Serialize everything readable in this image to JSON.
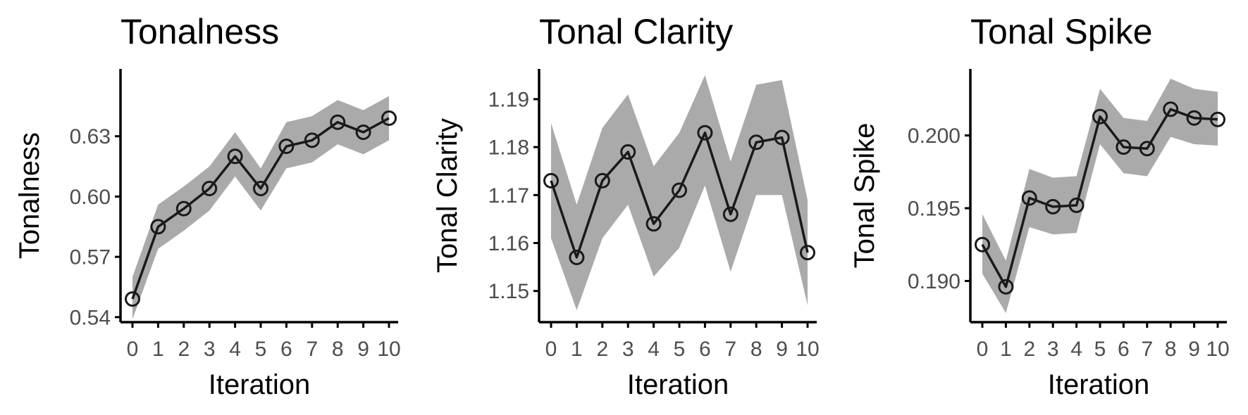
{
  "chart_data": [
    {
      "type": "line",
      "title": "Tonalness",
      "xlabel": "Iteration",
      "ylabel": "Tonalness",
      "x": [
        0,
        1,
        2,
        3,
        4,
        5,
        6,
        7,
        8,
        9,
        10
      ],
      "xticks": [
        "0",
        "1",
        "2",
        "3",
        "4",
        "5",
        "6",
        "7",
        "8",
        "9",
        "10"
      ],
      "yticks": [
        "0.54",
        "0.57",
        "0.60",
        "0.63"
      ],
      "ytick_values": [
        0.54,
        0.57,
        0.6,
        0.63
      ],
      "ylim": [
        0.5375,
        0.6635
      ],
      "series": [
        {
          "values": [
            0.549,
            0.585,
            0.594,
            0.604,
            0.62,
            0.604,
            0.625,
            0.628,
            0.637,
            0.632,
            0.639
          ],
          "lower": [
            0.539,
            0.574,
            0.583,
            0.593,
            0.61,
            0.593,
            0.614,
            0.617,
            0.626,
            0.621,
            0.628
          ],
          "upper": [
            0.56,
            0.596,
            0.605,
            0.615,
            0.632,
            0.614,
            0.637,
            0.64,
            0.648,
            0.643,
            0.65
          ]
        }
      ],
      "grid": false,
      "legend": "none"
    },
    {
      "type": "line",
      "title": "Tonal Clarity",
      "xlabel": "Iteration",
      "ylabel": "Tonal Clarity",
      "x": [
        0,
        1,
        2,
        3,
        4,
        5,
        6,
        7,
        8,
        9,
        10
      ],
      "xticks": [
        "0",
        "1",
        "2",
        "3",
        "4",
        "5",
        "6",
        "7",
        "8",
        "9",
        "10"
      ],
      "yticks": [
        "1.15",
        "1.16",
        "1.17",
        "1.18",
        "1.19"
      ],
      "ytick_values": [
        1.15,
        1.16,
        1.17,
        1.18,
        1.19
      ],
      "ylim": [
        1.1435,
        1.1963
      ],
      "series": [
        {
          "values": [
            1.173,
            1.157,
            1.173,
            1.179,
            1.164,
            1.171,
            1.183,
            1.166,
            1.181,
            1.182,
            1.158
          ],
          "lower": [
            1.161,
            1.146,
            1.161,
            1.168,
            1.153,
            1.159,
            1.172,
            1.154,
            1.17,
            1.17,
            1.147
          ],
          "upper": [
            1.185,
            1.168,
            1.184,
            1.191,
            1.176,
            1.183,
            1.195,
            1.177,
            1.193,
            1.194,
            1.169
          ]
        }
      ],
      "grid": false,
      "legend": "none"
    },
    {
      "type": "line",
      "title": "Tonal Spike",
      "xlabel": "Iteration",
      "ylabel": "Tonal Spike",
      "x": [
        0,
        1,
        2,
        3,
        4,
        5,
        6,
        7,
        8,
        9,
        10
      ],
      "xticks": [
        "0",
        "1",
        "2",
        "3",
        "4",
        "5",
        "6",
        "7",
        "8",
        "9",
        "10"
      ],
      "yticks": [
        "0.190",
        "0.195",
        "0.200"
      ],
      "ytick_values": [
        0.19,
        0.195,
        0.2
      ],
      "ylim": [
        0.18717,
        0.20457
      ],
      "series": [
        {
          "values": [
            0.1925,
            0.1896,
            0.1957,
            0.1951,
            0.1952,
            0.2013,
            0.1992,
            0.1991,
            0.2018,
            0.2012,
            0.2011
          ],
          "lower": [
            0.1905,
            0.1878,
            0.1937,
            0.1932,
            0.1933,
            0.1994,
            0.1974,
            0.1972,
            0.1999,
            0.1994,
            0.1993
          ],
          "upper": [
            0.1946,
            0.1914,
            0.1977,
            0.1971,
            0.1972,
            0.2032,
            0.2012,
            0.201,
            0.2039,
            0.2032,
            0.203
          ]
        }
      ],
      "grid": false,
      "legend": "none"
    }
  ],
  "colors": {
    "ribbon": "#aaaaaa",
    "line": "#1a1a1a",
    "axis": "#000000",
    "tick_label": "#4d4d4d"
  }
}
